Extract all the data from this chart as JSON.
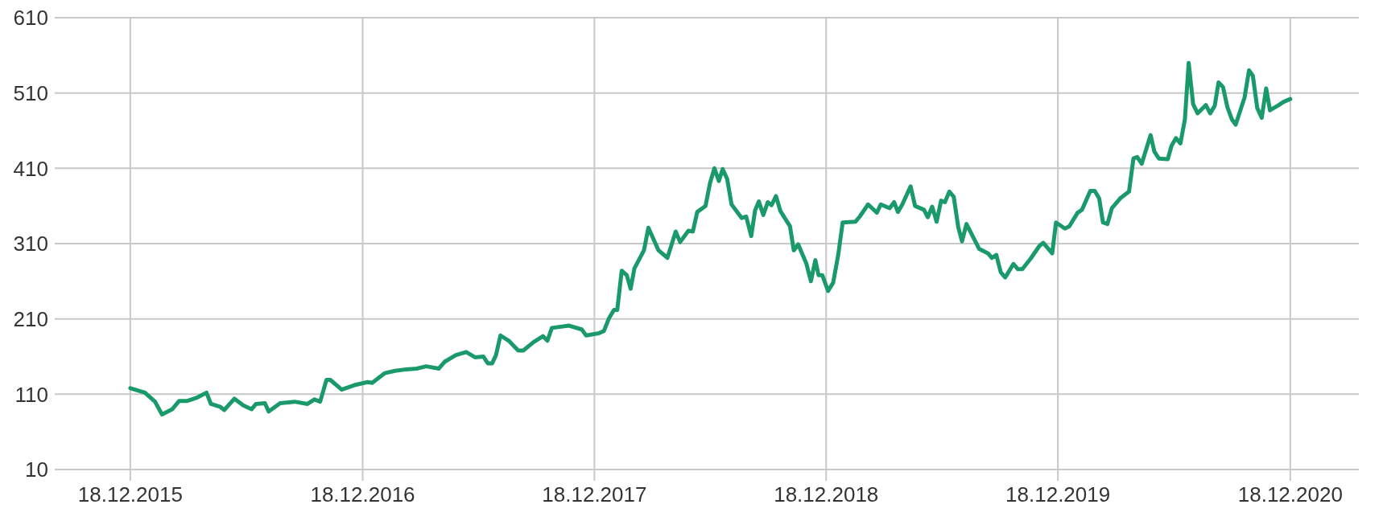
{
  "chart_data": {
    "type": "line",
    "color": "#1a9a6a",
    "grid": true,
    "marker": "none",
    "line_style": "solid",
    "xlim": [
      "2015-08-21",
      "2021-04-05"
    ],
    "xticks": [
      {
        "value": "2015-12-18",
        "label": "18.12.2015"
      },
      {
        "value": "2016-12-18",
        "label": "18.12.2016"
      },
      {
        "value": "2017-12-18",
        "label": "18.12.2017"
      },
      {
        "value": "2018-12-18",
        "label": "18.12.2018"
      },
      {
        "value": "2019-12-18",
        "label": "18.12.2019"
      },
      {
        "value": "2020-12-18",
        "label": "18.12.2020"
      }
    ],
    "ylim": [
      -5,
      610
    ],
    "yticks": [
      10,
      110,
      210,
      310,
      410,
      510,
      610
    ],
    "x": [
      "2015-12-18",
      "2016-01-10",
      "2016-01-26",
      "2016-02-06",
      "2016-02-22",
      "2016-03-04",
      "2016-03-17",
      "2016-03-31",
      "2016-04-16",
      "2016-04-23",
      "2016-05-08",
      "2016-05-14",
      "2016-05-30",
      "2016-06-13",
      "2016-06-26",
      "2016-07-03",
      "2016-07-17",
      "2016-07-23",
      "2016-08-10",
      "2016-09-02",
      "2016-09-22",
      "2016-10-03",
      "2016-10-12",
      "2016-10-22",
      "2016-10-28",
      "2016-11-15",
      "2016-12-05",
      "2016-12-26",
      "2017-01-02",
      "2017-01-22",
      "2017-02-07",
      "2017-02-25",
      "2017-03-13",
      "2017-03-28",
      "2017-04-17",
      "2017-04-26",
      "2017-05-14",
      "2017-05-30",
      "2017-06-13",
      "2017-06-26",
      "2017-07-03",
      "2017-07-10",
      "2017-07-16",
      "2017-07-23",
      "2017-08-05",
      "2017-08-20",
      "2017-08-28",
      "2017-09-13",
      "2017-09-28",
      "2017-10-05",
      "2017-10-12",
      "2017-11-08",
      "2017-11-28",
      "2017-12-05",
      "2017-12-25",
      "2018-01-02",
      "2018-01-10",
      "2018-01-18",
      "2018-01-23",
      "2018-01-30",
      "2018-02-07",
      "2018-02-13",
      "2018-02-19",
      "2018-03-06",
      "2018-03-13",
      "2018-03-29",
      "2018-04-12",
      "2018-04-25",
      "2018-05-02",
      "2018-05-15",
      "2018-05-22",
      "2018-05-29",
      "2018-06-11",
      "2018-06-18",
      "2018-06-25",
      "2018-07-02",
      "2018-07-08",
      "2018-07-15",
      "2018-07-22",
      "2018-08-07",
      "2018-08-14",
      "2018-08-22",
      "2018-08-28",
      "2018-09-03",
      "2018-09-10",
      "2018-09-17",
      "2018-09-23",
      "2018-09-30",
      "2018-10-07",
      "2018-10-22",
      "2018-10-28",
      "2018-11-04",
      "2018-11-17",
      "2018-11-24",
      "2018-12-01",
      "2018-12-06",
      "2018-12-12",
      "2018-12-21",
      "2018-12-29",
      "2019-01-06",
      "2019-01-13",
      "2019-02-02",
      "2019-02-09",
      "2019-02-22",
      "2019-03-08",
      "2019-03-14",
      "2019-03-28",
      "2019-04-04",
      "2019-04-10",
      "2019-04-17",
      "2019-04-30",
      "2019-05-07",
      "2019-05-21",
      "2019-05-27",
      "2019-06-03",
      "2019-06-10",
      "2019-06-17",
      "2019-06-23",
      "2019-06-30",
      "2019-07-07",
      "2019-07-14",
      "2019-07-20",
      "2019-07-27",
      "2019-08-16",
      "2019-08-30",
      "2019-09-05",
      "2019-09-12",
      "2019-09-19",
      "2019-09-26",
      "2019-10-09",
      "2019-10-16",
      "2019-10-23",
      "2019-11-05",
      "2019-11-19",
      "2019-11-25",
      "2019-12-09",
      "2019-12-15",
      "2019-12-29",
      "2020-01-05",
      "2020-01-18",
      "2020-01-25",
      "2020-02-07",
      "2020-02-14",
      "2020-02-21",
      "2020-02-27",
      "2020-03-05",
      "2020-03-12",
      "2020-03-25",
      "2020-04-08",
      "2020-04-15",
      "2020-04-21",
      "2020-04-28",
      "2020-05-12",
      "2020-05-18",
      "2020-05-25",
      "2020-06-08",
      "2020-06-14",
      "2020-06-21",
      "2020-06-28",
      "2020-07-05",
      "2020-07-11",
      "2020-07-18",
      "2020-07-25",
      "2020-08-07",
      "2020-08-14",
      "2020-08-21",
      "2020-08-27",
      "2020-09-03",
      "2020-09-10",
      "2020-09-17",
      "2020-09-23",
      "2020-10-07",
      "2020-10-14",
      "2020-10-20",
      "2020-10-27",
      "2020-11-03",
      "2020-11-10",
      "2020-11-16",
      "2020-11-30",
      "2020-12-07",
      "2020-12-18"
    ],
    "values": [
      118,
      112,
      100,
      83,
      90,
      101,
      101,
      105,
      112,
      97,
      93,
      89,
      104,
      95,
      90,
      97,
      98,
      87,
      98,
      100,
      97,
      103,
      100,
      129,
      129,
      116,
      122,
      126,
      125,
      138,
      141,
      143,
      144,
      147,
      144,
      153,
      162,
      166,
      159,
      160,
      151,
      151,
      162,
      188,
      181,
      168,
      168,
      179,
      187,
      181,
      198,
      201,
      196,
      188,
      191,
      194,
      211,
      222,
      222,
      274,
      268,
      250,
      277,
      301,
      331,
      301,
      291,
      326,
      312,
      327,
      326,
      352,
      360,
      390,
      410,
      393,
      409,
      396,
      362,
      344,
      346,
      320,
      354,
      366,
      348,
      365,
      361,
      373,
      353,
      333,
      301,
      309,
      283,
      260,
      288,
      268,
      268,
      247,
      258,
      295,
      338,
      339,
      346,
      362,
      351,
      362,
      357,
      365,
      352,
      362,
      386,
      360,
      355,
      345,
      359,
      339,
      367,
      365,
      379,
      372,
      332,
      313,
      336,
      303,
      297,
      291,
      295,
      272,
      265,
      283,
      276,
      276,
      290,
      307,
      311,
      297,
      338,
      330,
      333,
      351,
      355,
      380,
      380,
      370,
      338,
      336,
      357,
      370,
      379,
      423,
      425,
      416,
      454,
      432,
      423,
      422,
      440,
      450,
      443,
      475,
      550,
      495,
      483,
      494,
      483,
      493,
      524,
      518,
      491,
      475,
      468,
      504,
      540,
      533,
      490,
      477,
      516,
      487,
      494,
      498,
      502
    ]
  }
}
